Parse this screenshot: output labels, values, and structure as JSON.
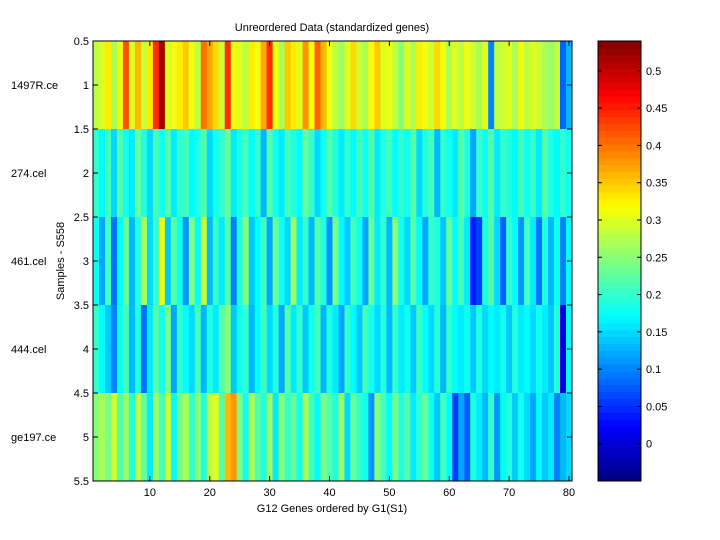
{
  "chart_data": {
    "type": "heatmap",
    "title": "Unreordered Data (standardized genes)",
    "xlabel": "G12 Genes ordered by G1(S1)",
    "ylabel": "Samples - S558",
    "xlim": [
      0.5,
      80.5
    ],
    "ylim": [
      0.5,
      5.5
    ],
    "x_ticks": [
      10,
      20,
      30,
      40,
      50,
      60,
      70,
      80
    ],
    "y_ticks": [
      0.5,
      1,
      1.5,
      2,
      2.5,
      3,
      3.5,
      4,
      4.5,
      5,
      5.5
    ],
    "row_labels": [
      "1497R.ce",
      "274.cel",
      "461.cel",
      "444.cel",
      "ge197.ce"
    ],
    "colormap": "jet",
    "clim": [
      -0.05,
      0.54
    ],
    "colorbar_ticks": [
      0,
      0.05,
      0.1,
      0.15,
      0.2,
      0.25,
      0.3,
      0.35,
      0.4,
      0.45,
      0.5
    ],
    "values": [
      [
        0.28,
        0.3,
        0.33,
        0.27,
        0.31,
        0.42,
        0.3,
        0.36,
        0.29,
        0.33,
        0.44,
        0.52,
        0.3,
        0.31,
        0.33,
        0.35,
        0.31,
        0.28,
        0.4,
        0.37,
        0.34,
        0.29,
        0.44,
        0.31,
        0.3,
        0.28,
        0.33,
        0.31,
        0.37,
        0.44,
        0.31,
        0.27,
        0.35,
        0.33,
        0.3,
        0.38,
        0.32,
        0.41,
        0.36,
        0.31,
        0.28,
        0.26,
        0.3,
        0.34,
        0.29,
        0.27,
        0.32,
        0.35,
        0.3,
        0.31,
        0.28,
        0.25,
        0.3,
        0.27,
        0.33,
        0.31,
        0.29,
        0.34,
        0.31,
        0.27,
        0.3,
        0.28,
        0.31,
        0.29,
        0.27,
        0.3,
        0.1,
        0.28,
        0.29,
        0.3,
        0.27,
        0.31,
        0.28,
        0.3,
        0.29,
        0.27,
        0.26,
        0.28,
        0.08,
        0.13
      ],
      [
        0.2,
        0.17,
        0.21,
        0.15,
        0.22,
        0.18,
        0.16,
        0.23,
        0.19,
        0.15,
        0.21,
        0.18,
        0.22,
        0.16,
        0.2,
        0.21,
        0.17,
        0.19,
        0.22,
        0.15,
        0.18,
        0.2,
        0.23,
        0.16,
        0.19,
        0.21,
        0.17,
        0.2,
        0.13,
        0.22,
        0.18,
        0.16,
        0.21,
        0.19,
        0.17,
        0.23,
        0.2,
        0.15,
        0.18,
        0.22,
        0.19,
        0.16,
        0.2,
        0.17,
        0.21,
        0.18,
        0.22,
        0.16,
        0.19,
        0.21,
        0.17,
        0.2,
        0.18,
        0.22,
        0.15,
        0.19,
        0.21,
        0.13,
        0.2,
        0.18,
        0.16,
        0.22,
        0.19,
        0.12,
        0.2,
        0.18,
        0.22,
        0.16,
        0.2,
        0.19,
        0.17,
        0.21,
        0.18,
        0.2,
        0.16,
        0.22,
        0.19,
        0.17,
        0.2,
        0.18
      ],
      [
        0.18,
        0.12,
        0.21,
        0.09,
        0.17,
        0.23,
        0.13,
        0.19,
        0.27,
        0.15,
        0.2,
        0.31,
        0.14,
        0.22,
        0.18,
        0.11,
        0.24,
        0.17,
        0.29,
        0.13,
        0.2,
        0.16,
        0.22,
        0.1,
        0.19,
        0.25,
        0.14,
        0.17,
        0.21,
        0.12,
        0.23,
        0.18,
        0.15,
        0.26,
        0.16,
        0.2,
        0.13,
        0.22,
        0.19,
        0.11,
        0.24,
        0.17,
        0.14,
        0.21,
        0.18,
        0.12,
        0.23,
        0.16,
        0.2,
        0.13,
        0.25,
        0.18,
        0.15,
        0.22,
        0.17,
        0.12,
        0.2,
        0.19,
        0.14,
        0.23,
        0.17,
        0.21,
        0.16,
        0.04,
        0.06,
        0.19,
        0.22,
        0.15,
        0.08,
        0.2,
        0.17,
        0.11,
        0.21,
        0.16,
        0.09,
        0.19,
        0.13,
        0.18,
        0.1,
        0.17
      ],
      [
        0.2,
        0.17,
        0.14,
        0.1,
        0.18,
        0.21,
        0.13,
        0.19,
        0.09,
        0.16,
        0.22,
        0.18,
        0.24,
        0.12,
        0.2,
        0.17,
        0.15,
        0.21,
        0.13,
        0.19,
        0.16,
        0.22,
        0.25,
        0.14,
        0.18,
        0.2,
        0.13,
        0.17,
        0.21,
        0.15,
        0.19,
        0.12,
        0.22,
        0.16,
        0.2,
        0.14,
        0.18,
        0.21,
        0.13,
        0.19,
        0.16,
        0.12,
        0.2,
        0.17,
        0.14,
        0.21,
        0.18,
        0.15,
        0.19,
        0.13,
        0.2,
        0.16,
        0.18,
        0.14,
        0.21,
        0.17,
        0.15,
        0.19,
        0.13,
        0.2,
        0.17,
        0.16,
        0.18,
        0.14,
        0.19,
        0.15,
        0.17,
        0.16,
        0.18,
        0.14,
        0.19,
        0.16,
        0.17,
        0.15,
        0.18,
        0.16,
        0.14,
        0.19,
        0.0,
        0.17
      ],
      [
        0.25,
        0.27,
        0.24,
        0.29,
        0.22,
        0.26,
        0.19,
        0.28,
        0.23,
        0.16,
        0.26,
        0.21,
        0.29,
        0.17,
        0.24,
        0.27,
        0.2,
        0.25,
        0.19,
        0.28,
        0.3,
        0.22,
        0.36,
        0.38,
        0.24,
        0.18,
        0.27,
        0.22,
        0.19,
        0.26,
        0.16,
        0.25,
        0.2,
        0.23,
        0.18,
        0.27,
        0.21,
        0.17,
        0.24,
        0.22,
        0.19,
        0.26,
        0.15,
        0.23,
        0.2,
        0.18,
        0.11,
        0.25,
        0.21,
        0.17,
        0.24,
        0.19,
        0.22,
        0.16,
        0.2,
        0.23,
        0.18,
        0.14,
        0.21,
        0.17,
        0.06,
        0.12,
        0.08,
        0.19,
        0.16,
        0.13,
        0.2,
        0.11,
        0.17,
        0.19,
        0.14,
        0.18,
        0.15,
        0.12,
        0.17,
        0.14,
        0.16,
        0.1,
        0.13,
        0.15
      ]
    ]
  }
}
